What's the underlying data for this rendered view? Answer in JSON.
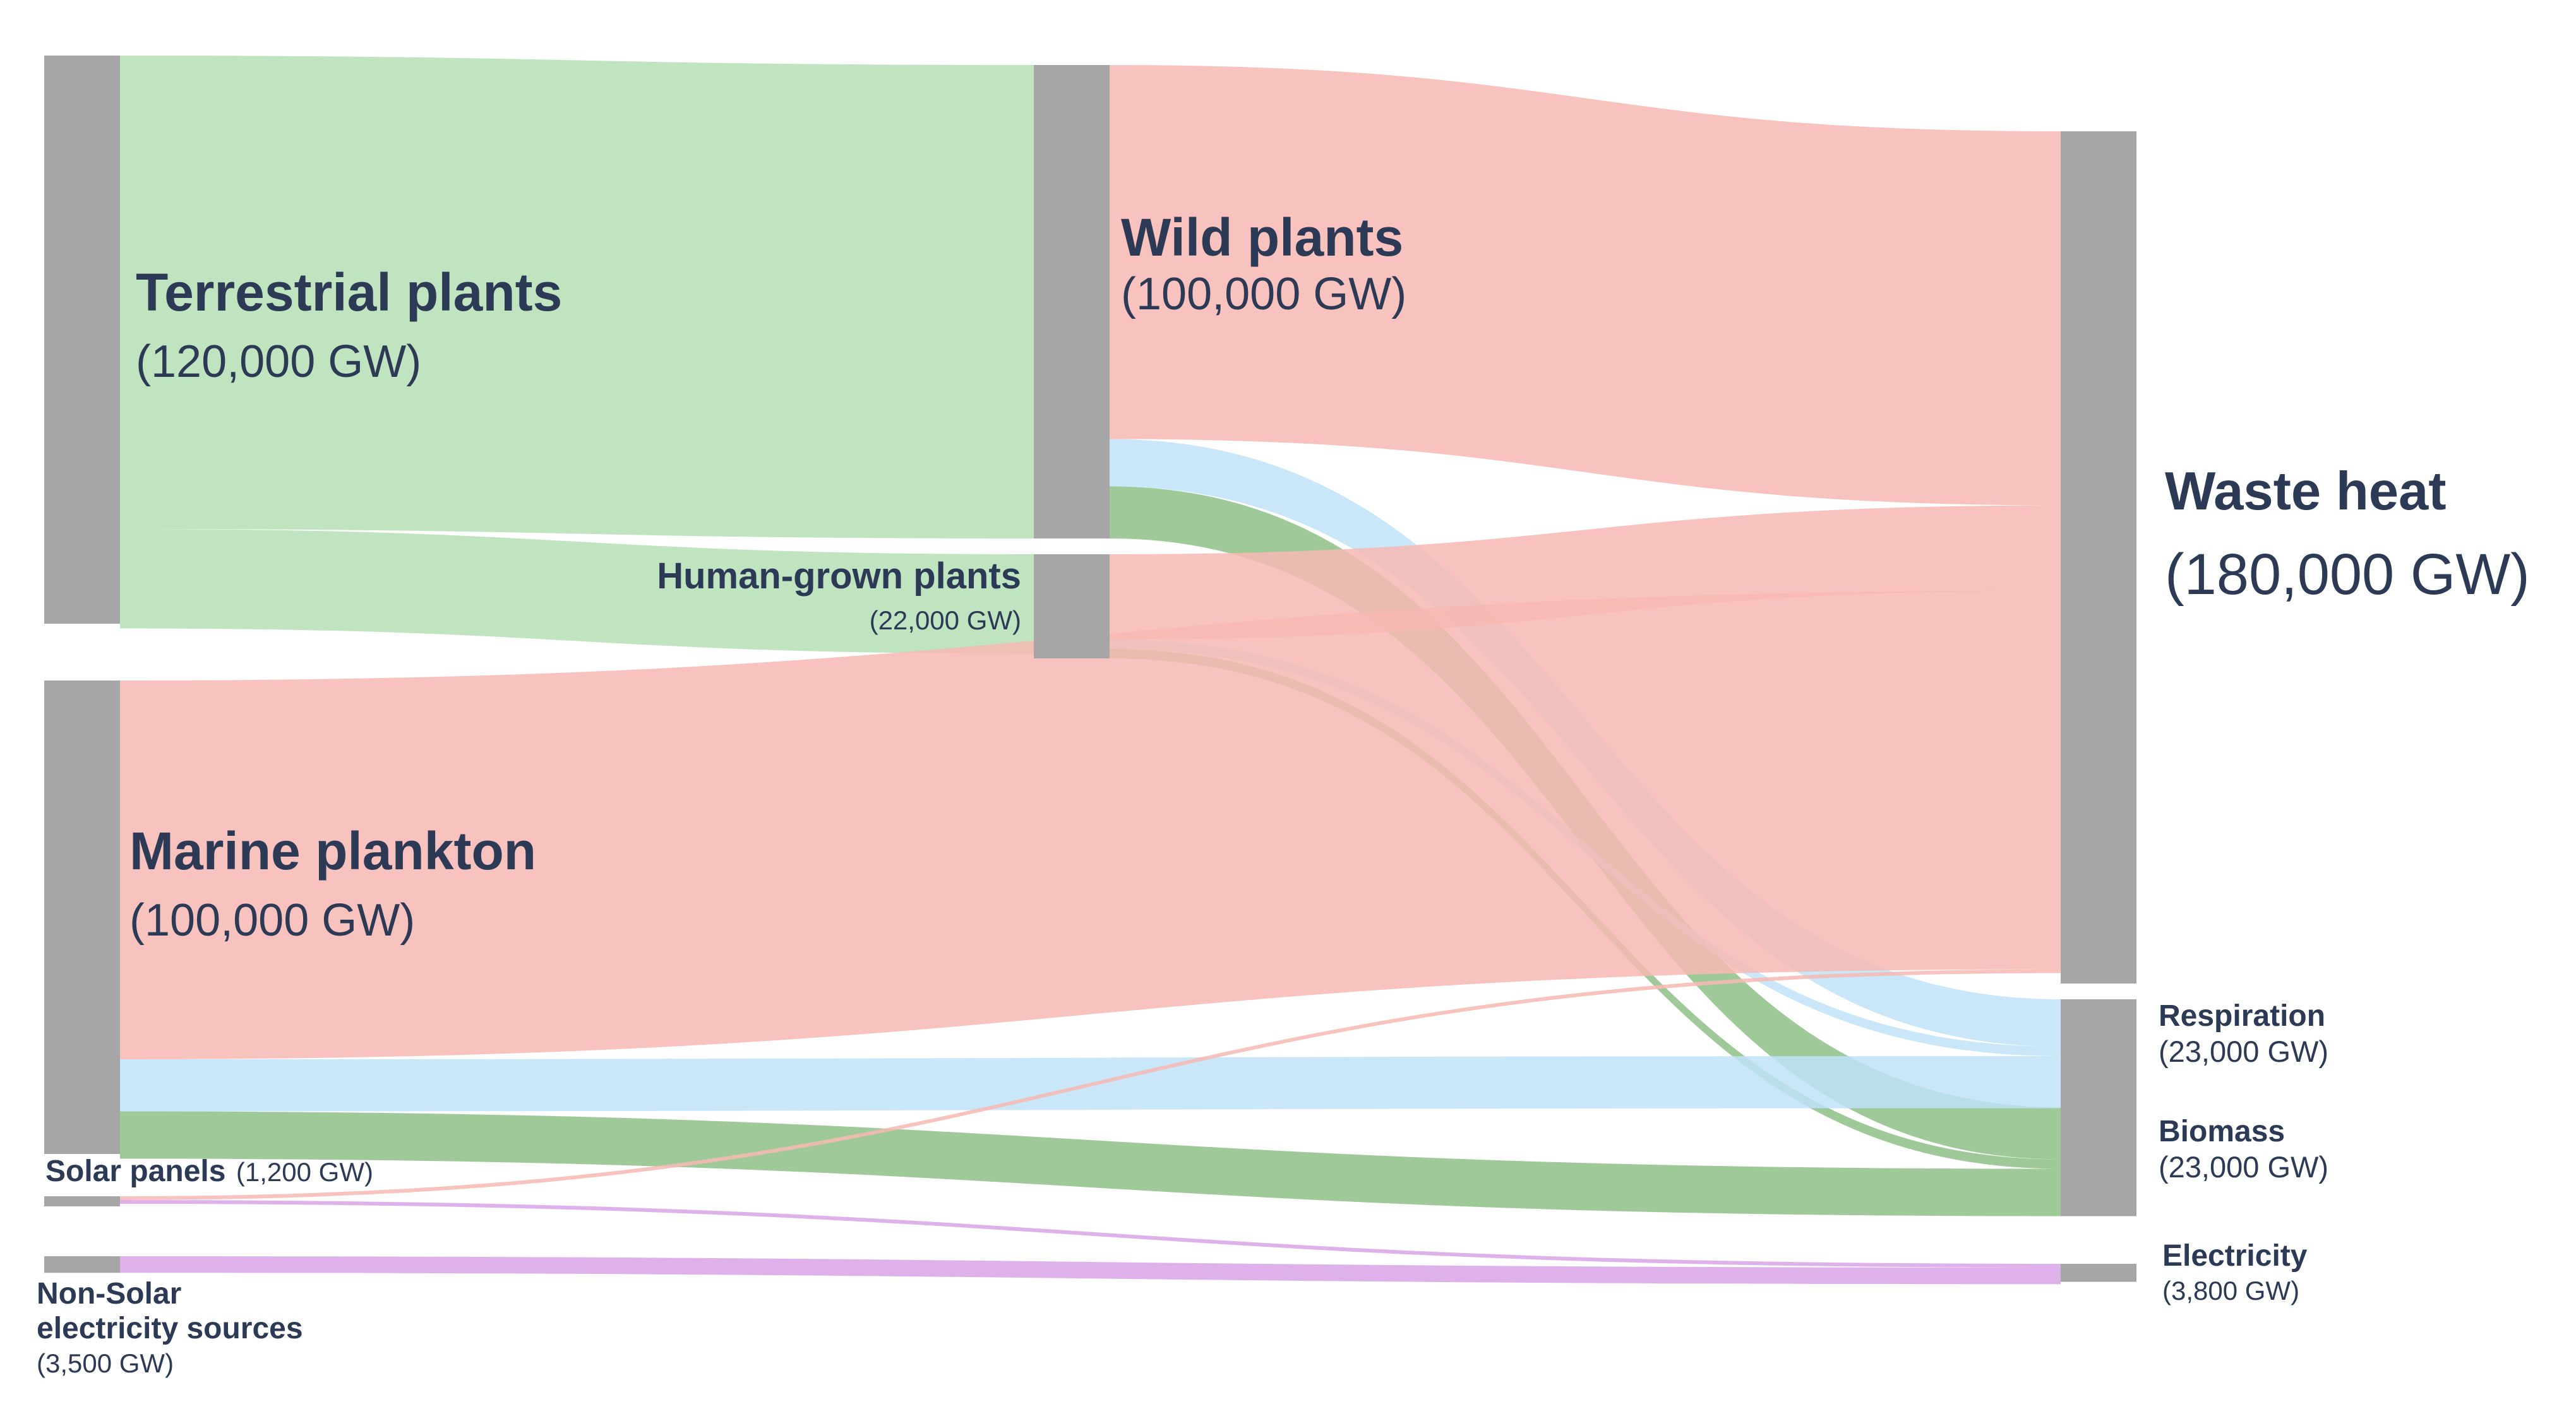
{
  "chart_data": {
    "type": "sankey",
    "units": "GW",
    "colors": {
      "node": "#a6a6a6",
      "green": "#b5deb5",
      "red": "#f7b8b3",
      "blue": "#bfe3f8",
      "darkgreen": "#8fbf87",
      "purple": "#d9a3e6"
    },
    "nodes": [
      {
        "id": "terrestrial",
        "name": "Terrestrial plants",
        "value_label": "(120,000 GW)",
        "value": 120000
      },
      {
        "id": "marine",
        "name": "Marine plankton",
        "value_label": "(100,000 GW)",
        "value": 100000
      },
      {
        "id": "solar",
        "name": "Solar panels",
        "value_label": "(1,200 GW)",
        "value": 1200
      },
      {
        "id": "nonsolar",
        "name": "Non-Solar electricity sources",
        "name_lines": [
          "Non-Solar",
          "electricity sources"
        ],
        "value_label": "(3,500 GW)",
        "value": 3500
      },
      {
        "id": "wild",
        "name": "Wild plants",
        "value_label": "(100,000 GW)",
        "value": 100000
      },
      {
        "id": "human",
        "name": "Human-grown plants",
        "value_label": "(22,000 GW)",
        "value": 22000
      },
      {
        "id": "waste",
        "name": "Waste heat",
        "value_label": "(180,000 GW)",
        "value": 180000
      },
      {
        "id": "respiration",
        "name": "Respiration",
        "value_label": "(23,000 GW)",
        "value": 23000
      },
      {
        "id": "biomass",
        "name": "Biomass",
        "value_label": "(23,000 GW)",
        "value": 23000
      },
      {
        "id": "electricity",
        "name": "Electricity",
        "value_label": "(3,800 GW)",
        "value": 3800
      }
    ],
    "links": [
      {
        "source": "terrestrial",
        "target": "wild",
        "value": 100000,
        "color": "green"
      },
      {
        "source": "terrestrial",
        "target": "human",
        "value": 21000,
        "color": "green"
      },
      {
        "source": "wild",
        "target": "waste",
        "value": 79000,
        "color": "red"
      },
      {
        "source": "wild",
        "target": "respiration",
        "value": 10000,
        "color": "blue"
      },
      {
        "source": "wild",
        "target": "biomass",
        "value": 11000,
        "color": "darkgreen"
      },
      {
        "source": "human",
        "target": "waste",
        "value": 18000,
        "color": "red"
      },
      {
        "source": "human",
        "target": "respiration",
        "value": 2000,
        "color": "blue"
      },
      {
        "source": "human",
        "target": "biomass",
        "value": 2000,
        "color": "darkgreen"
      },
      {
        "source": "marine",
        "target": "waste",
        "value": 80000,
        "color": "red"
      },
      {
        "source": "marine",
        "target": "respiration",
        "value": 11000,
        "color": "blue"
      },
      {
        "source": "marine",
        "target": "biomass",
        "value": 10000,
        "color": "darkgreen"
      },
      {
        "source": "solar",
        "target": "waste",
        "value": 800,
        "color": "red"
      },
      {
        "source": "solar",
        "target": "electricity",
        "value": 400,
        "color": "purple"
      },
      {
        "source": "nonsolar",
        "target": "electricity",
        "value": 3500,
        "color": "purple"
      }
    ]
  }
}
